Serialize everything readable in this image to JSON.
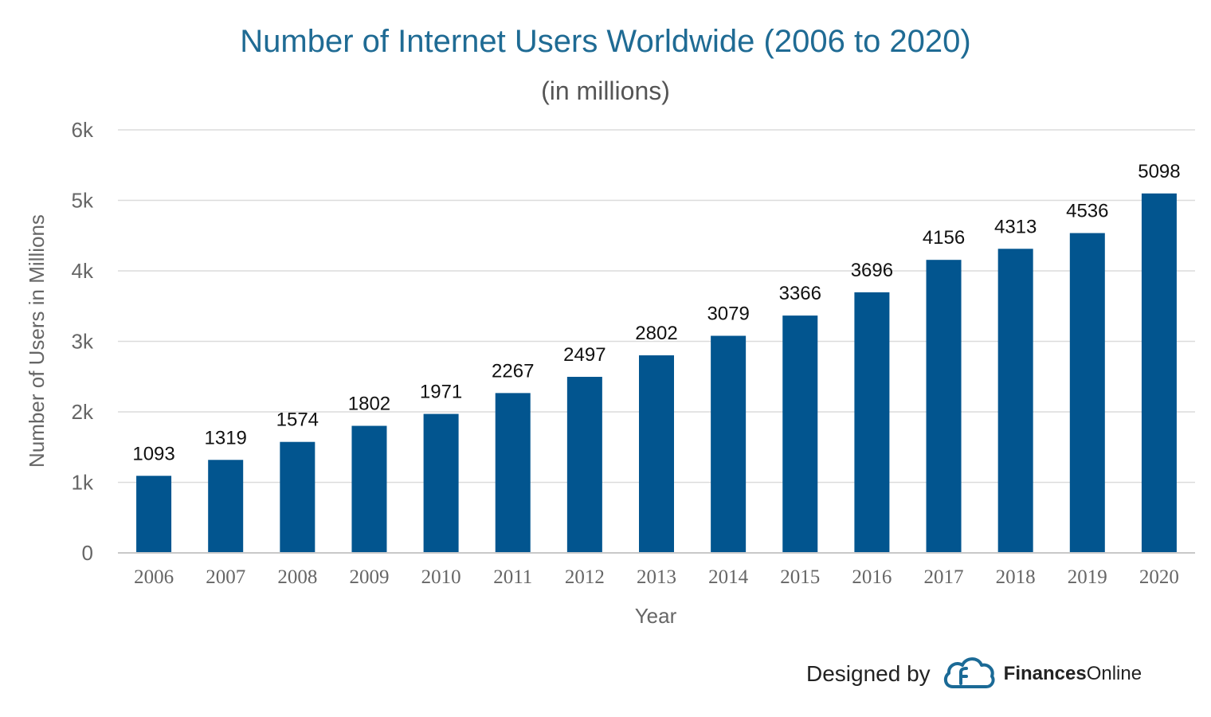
{
  "chart_data": {
    "type": "bar",
    "title": "Number of Internet Users Worldwide (2006 to 2020)",
    "subtitle": "(in millions)",
    "xlabel": "Year",
    "ylabel": "Number of Users in Millions",
    "categories": [
      "2006",
      "2007",
      "2008",
      "2009",
      "2010",
      "2011",
      "2012",
      "2013",
      "2014",
      "2015",
      "2016",
      "2017",
      "2018",
      "2019",
      "2020"
    ],
    "values": [
      1093,
      1319,
      1574,
      1802,
      1971,
      2267,
      2497,
      2802,
      3079,
      3366,
      3696,
      4156,
      4313,
      4536,
      5098
    ],
    "ylim": [
      0,
      6000
    ],
    "yticks": [
      0,
      1000,
      2000,
      3000,
      4000,
      5000,
      6000
    ],
    "ytick_labels": [
      "0",
      "1k",
      "2k",
      "3k",
      "4k",
      "5k",
      "6k"
    ],
    "grid": true,
    "bar_color": "#02558f",
    "title_color": "#1f6b94"
  },
  "footer": {
    "designed_by": "Designed by",
    "brand_bold": "Finances",
    "brand_regular": "Online",
    "logo_icon": "cloud-logo-icon",
    "logo_color": "#1b6a96"
  }
}
